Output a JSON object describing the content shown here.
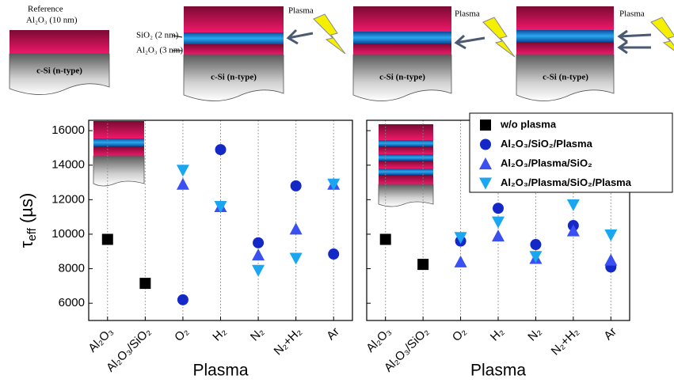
{
  "schematics": {
    "reference": "Reference",
    "ref_layer": "Al₂O₃ (10 nm)",
    "sio2_layer": "SiO₂ (2 nm)",
    "thin_layer": "Al₂O₃ (3 nm)",
    "plasma": [
      "Plasma",
      "Plasma",
      "Plasma"
    ],
    "substrate": [
      "c-Si (n-type)",
      "c-Si (n-type)",
      "c-Si (n-type)",
      "c-Si (n-type)"
    ]
  },
  "chart_data": [
    {
      "type": "scatter",
      "ylabel": {
        "symbol": "τ",
        "subscript": "eff",
        "unit": " (µs)"
      },
      "xlabel": "Plasma",
      "categories": [
        "Al₂O₃",
        "Al₂O₃/SiO₂",
        "O₂",
        "H₂",
        "N₂",
        "N₂+H₂",
        "Ar"
      ],
      "ylim": [
        5000,
        16600
      ],
      "yticks": [
        6000,
        8000,
        10000,
        12000,
        14000,
        16000
      ],
      "show_ytick_labels": true,
      "series": [
        {
          "color": "#000000",
          "marker": "square",
          "values": [
            9700,
            7150,
            null,
            null,
            null,
            null,
            null
          ]
        },
        {
          "color": "#1428c8",
          "marker": "circle",
          "values": [
            null,
            null,
            6200,
            14900,
            9500,
            12800,
            8850
          ]
        },
        {
          "color": "#3b50f0",
          "marker": "triangle-up",
          "values": [
            null,
            null,
            12900,
            11600,
            8800,
            10300,
            12900
          ]
        },
        {
          "color": "#1aa6f0",
          "marker": "triangle-down",
          "values": [
            null,
            null,
            13700,
            11600,
            7900,
            8600,
            12900
          ]
        }
      ]
    },
    {
      "type": "scatter",
      "xlabel": "Plasma",
      "categories": [
        "Al₂O₃",
        "Al₂O₃/SiO₂",
        "O₂",
        "H₂",
        "N₂",
        "N₂+H₂",
        "Ar"
      ],
      "ylim": [
        5000,
        16600
      ],
      "yticks": [
        6000,
        8000,
        10000,
        12000,
        14000,
        16000
      ],
      "show_ytick_labels": false,
      "series": [
        {
          "name": "w/o plasma",
          "color": "#000000",
          "marker": "square",
          "values": [
            9700,
            8250,
            null,
            null,
            null,
            null,
            null
          ]
        },
        {
          "name": "Al₂O₃/SiO₂/Plasma",
          "color": "#1428c8",
          "marker": "circle",
          "values": [
            null,
            null,
            9600,
            11500,
            9400,
            10500,
            8100
          ]
        },
        {
          "name": "Al₂O₃/Plasma/SiO₂",
          "color": "#3b50f0",
          "marker": "triangle-up",
          "values": [
            null,
            null,
            8400,
            9900,
            8600,
            10200,
            8500
          ]
        },
        {
          "name": "Al₂O₃/Plasma/SiO₂/Plasma",
          "color": "#1aa6f0",
          "marker": "triangle-down",
          "values": [
            null,
            null,
            9800,
            10700,
            8700,
            11700,
            9950
          ]
        }
      ]
    }
  ]
}
